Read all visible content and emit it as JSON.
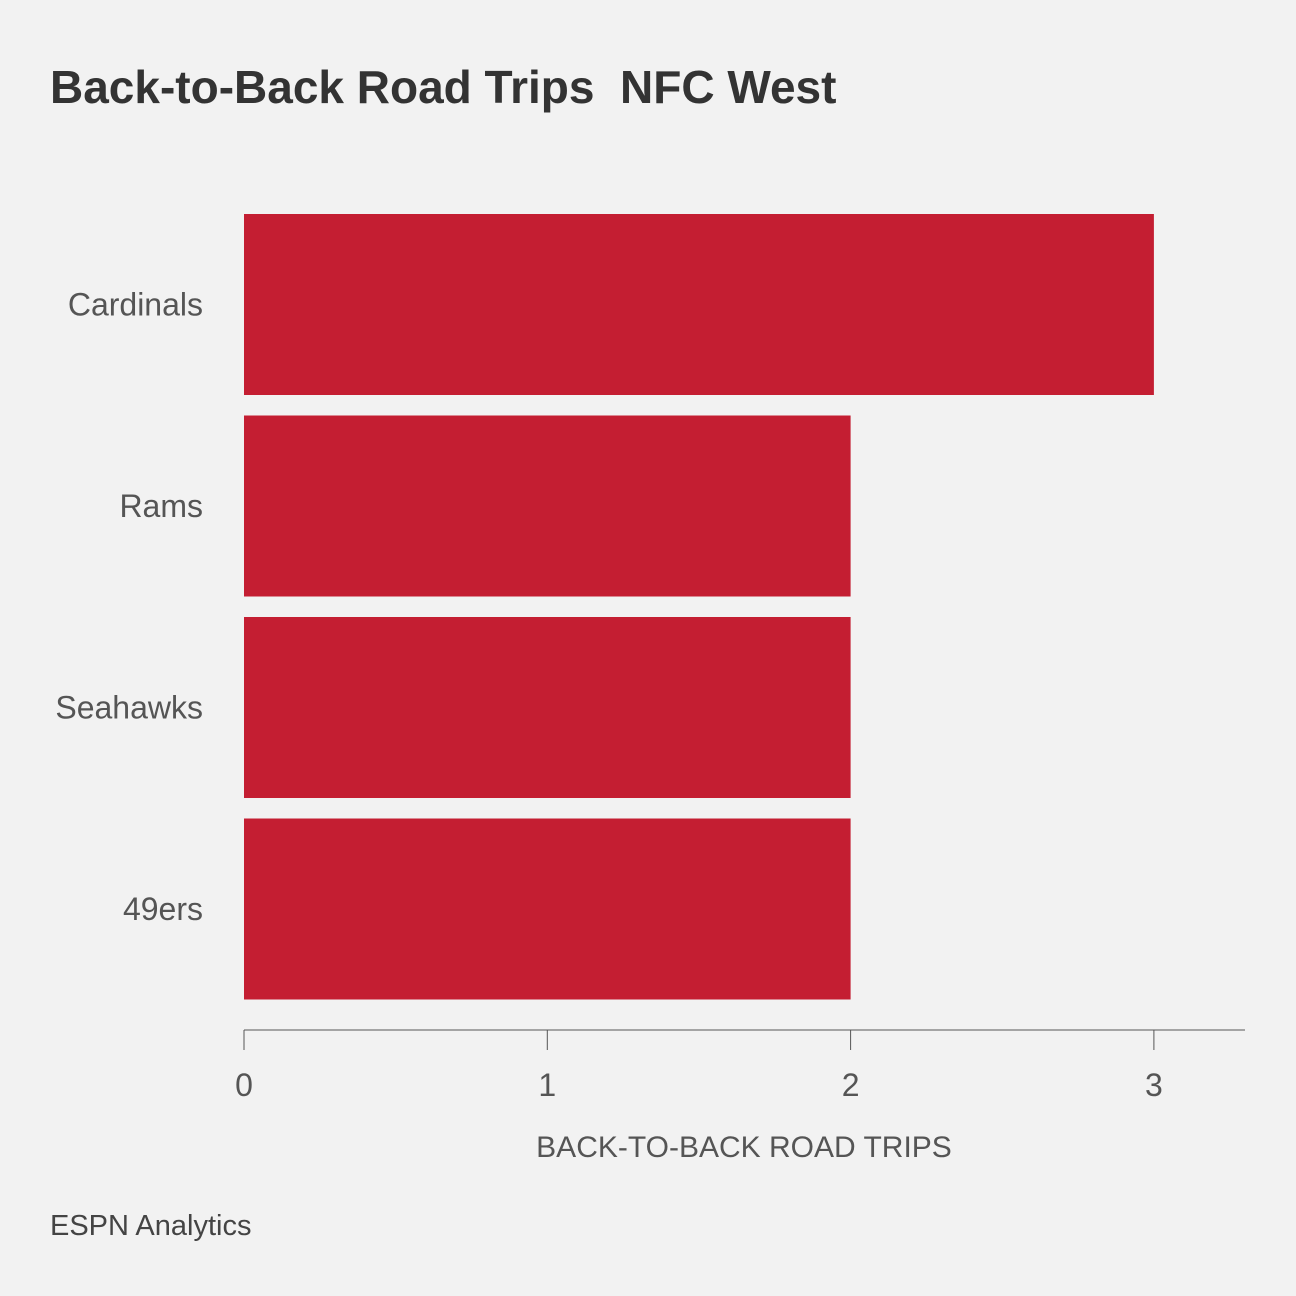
{
  "title": "Back-to-Back Road Trips  NFC West",
  "source": "ESPN Analytics",
  "colors": {
    "bar": "#c41e32",
    "background": "#f2f2f2",
    "axis": "#555555"
  },
  "chart_data": {
    "type": "bar",
    "orientation": "horizontal",
    "title": "Back-to-Back Road Trips  NFC West",
    "categories": [
      "Cardinals",
      "Rams",
      "Seahawks",
      "49ers"
    ],
    "values": [
      3,
      2,
      2,
      2
    ],
    "xlabel": "BACK-TO-BACK ROAD TRIPS",
    "ylabel": "",
    "xticks": [
      0,
      1,
      2,
      3
    ],
    "xlim": [
      0,
      3.3
    ],
    "grid": false,
    "legend": "none"
  }
}
